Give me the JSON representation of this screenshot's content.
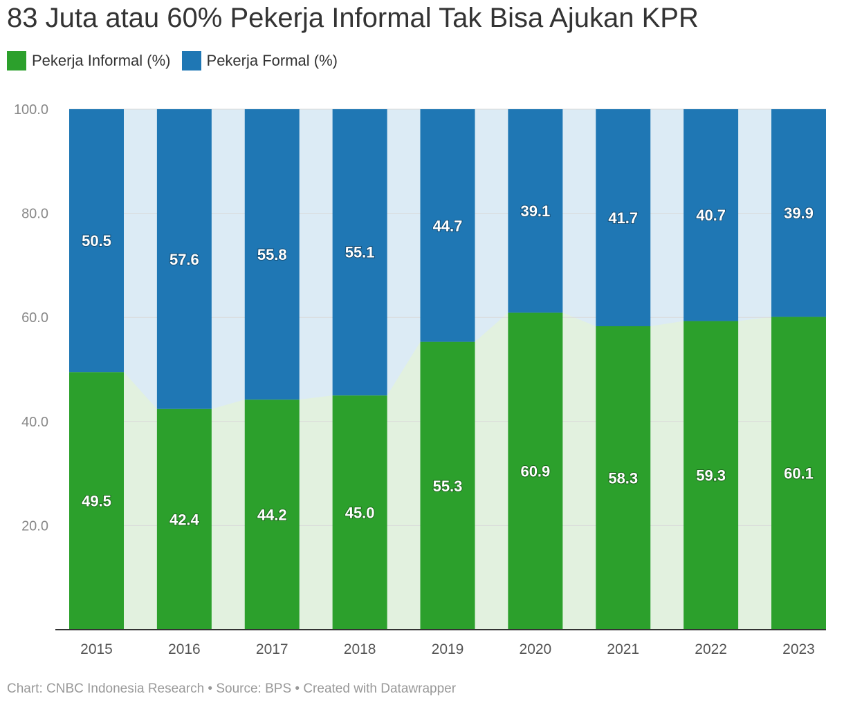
{
  "title": "83 Juta atau 60% Pekerja Informal Tak Bisa Ajukan KPR",
  "legend": [
    {
      "label": "Pekerja Informal (%)",
      "color": "#2ca02c"
    },
    {
      "label": "Pekerja Formal (%)",
      "color": "#1f77b4"
    }
  ],
  "footer": "Chart: CNBC Indonesia Research • Source: BPS • Created with Datawrapper",
  "chart_data": {
    "type": "bar",
    "stacked": true,
    "categories": [
      "2015",
      "2016",
      "2017",
      "2018",
      "2019",
      "2020",
      "2021",
      "2022",
      "2023"
    ],
    "series": [
      {
        "name": "Pekerja Informal (%)",
        "color": "#2ca02c",
        "values": [
          49.5,
          42.4,
          44.2,
          45.0,
          55.3,
          60.9,
          58.3,
          59.3,
          60.1
        ]
      },
      {
        "name": "Pekerja Formal (%)",
        "color": "#1f77b4",
        "values": [
          50.5,
          57.6,
          55.8,
          55.1,
          44.7,
          39.1,
          41.7,
          40.7,
          39.9
        ]
      }
    ],
    "value_labels": {
      "informal": [
        "49.5",
        "42.4",
        "44.2",
        "45.0",
        "55.3",
        "60.9",
        "58.3",
        "59.3",
        "60.1"
      ],
      "formal": [
        "50.5",
        "57.6",
        "55.8",
        "55.1",
        "44.7",
        "39.1",
        "41.7",
        "40.7",
        "39.9"
      ]
    },
    "ylim": [
      0,
      100
    ],
    "yticks": [
      "20.0",
      "40.0",
      "60.0",
      "80.0",
      "100.0"
    ],
    "yticks_values": [
      20,
      40,
      60,
      80,
      100
    ],
    "grid": true,
    "legend_position": "top-left",
    "area_fill_between_bars": true
  }
}
